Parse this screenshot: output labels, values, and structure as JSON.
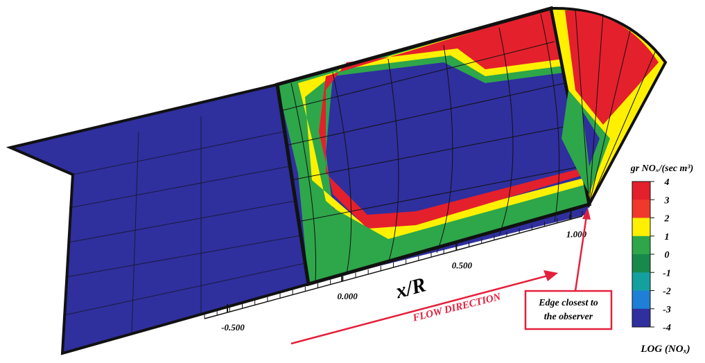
{
  "colorbar": {
    "title": "gr NOₓ/(sec m³)",
    "labels": [
      4,
      3,
      2,
      1,
      0,
      -1,
      -2,
      -3,
      -4
    ],
    "colors": [
      "#e4202c",
      "#f0392c",
      "#fff000",
      "#2ea64a",
      "#17894a",
      "#15a0a0",
      "#1f7fd6",
      "#2f2f9e"
    ],
    "caption": "LOG (NOₓ)"
  },
  "axis": {
    "label": "x/R",
    "ticks": [
      {
        "value": -0.5,
        "label": "-0.500"
      },
      {
        "value": 0,
        "label": "0.000"
      },
      {
        "value": 0.5,
        "label": "0.500"
      },
      {
        "value": 1,
        "label": "1.000"
      }
    ]
  },
  "annotations": {
    "flow": "FLOW DIRECTION",
    "edge": [
      "Edge closest to",
      "the observer"
    ]
  }
}
